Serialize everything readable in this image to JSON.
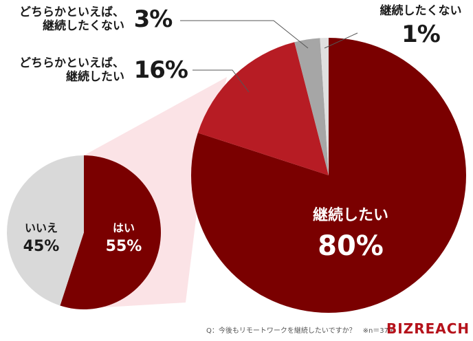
{
  "chart_data": [
    {
      "type": "pie",
      "title": "",
      "slices": [
        {
          "name": "はい",
          "value": 55,
          "label": "55%",
          "color": "#7a0000"
        },
        {
          "name": "いいえ",
          "value": 45,
          "label": "45%",
          "color": "#d9d9d9"
        }
      ]
    },
    {
      "type": "pie",
      "title": "",
      "slices": [
        {
          "name": "継続したい",
          "value": 80,
          "label": "80%",
          "color": "#7a0000"
        },
        {
          "name": "どちらかといえば、継続したい",
          "name_line1": "どちらかといえば、",
          "name_line2": "継続したい",
          "value": 16,
          "label": "16%",
          "color": "#b71c24"
        },
        {
          "name": "どちらかといえば、継続したくない",
          "name_line1": "どちらかといえば、",
          "name_line2": "継続したくない",
          "value": 3,
          "label": "3%",
          "color": "#a6a6a6"
        },
        {
          "name": "継続したくない",
          "value": 1,
          "label": "1%",
          "color": "#e0e0e0"
        }
      ]
    }
  ],
  "footer": {
    "question": "Q：今後もリモートワークを継続したいですか？　※n＝379",
    "logo": "BIZREACH"
  },
  "colors": {
    "connector": "#fbe3e6",
    "leader": "#555555"
  }
}
